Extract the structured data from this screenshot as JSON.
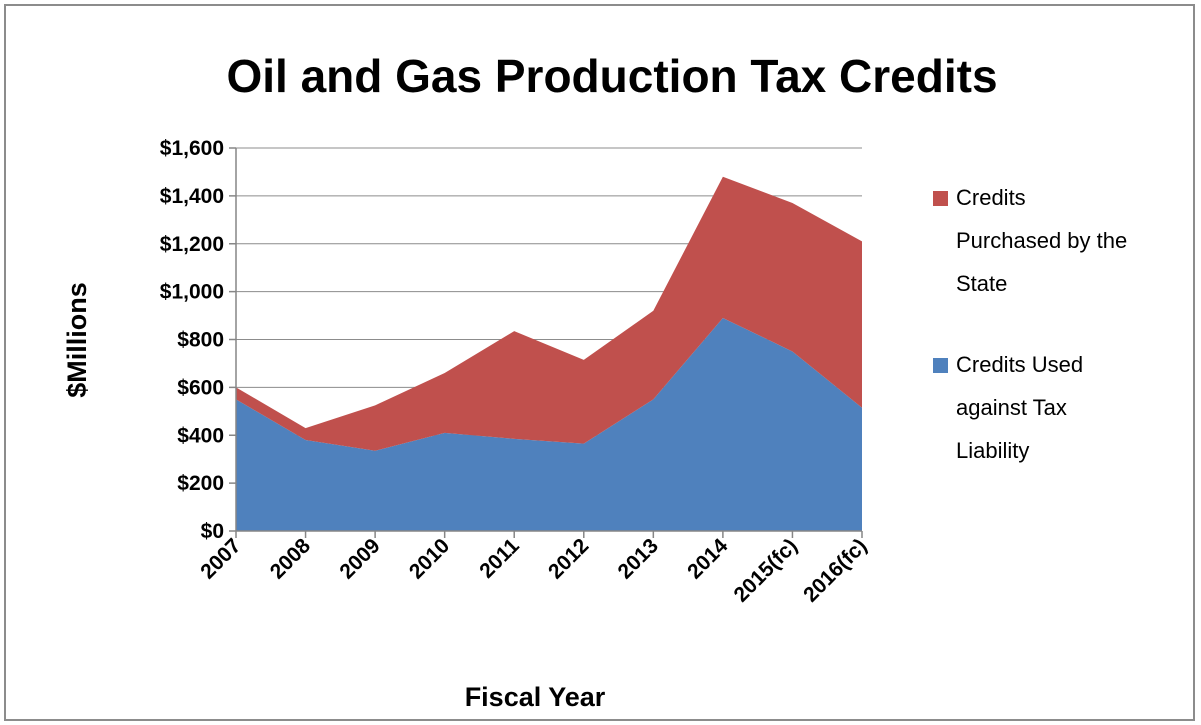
{
  "chart_data": {
    "type": "area",
    "stacked": true,
    "title": "Oil and Gas Production Tax Credits",
    "xlabel": "Fiscal Year",
    "ylabel": "$Millions",
    "ylim": [
      0,
      1600
    ],
    "y_ticks": [
      0,
      200,
      400,
      600,
      800,
      1000,
      1200,
      1400,
      1600
    ],
    "y_tick_labels": [
      "$0",
      "$200",
      "$400",
      "$600",
      "$800",
      "$1,000",
      "$1,200",
      "$1,400",
      "$1,600"
    ],
    "categories": [
      "2007",
      "2008",
      "2009",
      "2010",
      "2011",
      "2012",
      "2013",
      "2014",
      "2015(fc)",
      "2016(fc)"
    ],
    "grid": "horizontal",
    "legend_position": "right",
    "series": [
      {
        "name": "Credits Used against Tax Liability",
        "color": "#4f81bd",
        "values": [
          550,
          380,
          335,
          410,
          385,
          365,
          550,
          890,
          750,
          515
        ]
      },
      {
        "name": "Credits Purchased by the State",
        "color": "#c0504d",
        "values": [
          50,
          50,
          190,
          250,
          450,
          350,
          370,
          590,
          620,
          695
        ]
      }
    ],
    "legend": [
      {
        "series": 1,
        "lines": [
          "Credits",
          "Purchased by the",
          "State"
        ]
      },
      {
        "series": 0,
        "lines": [
          "Credits Used",
          "against Tax",
          "Liability"
        ]
      }
    ]
  }
}
